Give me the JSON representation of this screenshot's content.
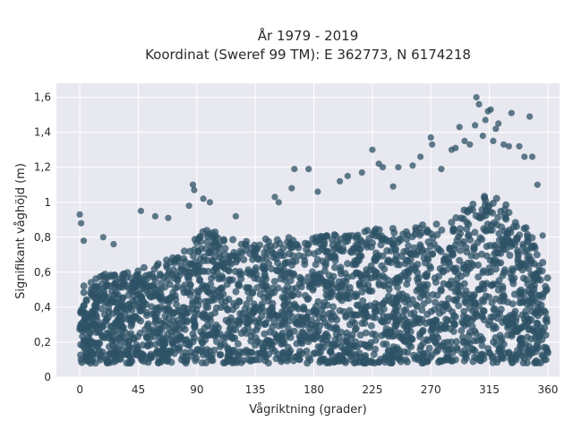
{
  "chart_data": {
    "type": "scatter",
    "title_line1": "År 1979 - 2019",
    "title_line2": "Koordinat (Sweref 99 TM): E 362773, N 6174218",
    "xlabel": "Vågriktning (grader)",
    "ylabel": "Signifikant våghöjd (m)",
    "xlim": [
      -18,
      369
    ],
    "ylim": [
      0,
      1.68
    ],
    "xticks": [
      {
        "value": 0,
        "label": "0"
      },
      {
        "value": 45,
        "label": "45"
      },
      {
        "value": 90,
        "label": "90"
      },
      {
        "value": 135,
        "label": "135"
      },
      {
        "value": 180,
        "label": "180"
      },
      {
        "value": 225,
        "label": "225"
      },
      {
        "value": 270,
        "label": "270"
      },
      {
        "value": 315,
        "label": "315"
      },
      {
        "value": 360,
        "label": "360"
      }
    ],
    "yticks": [
      {
        "value": 0,
        "label": "0"
      },
      {
        "value": 0.2,
        "label": "0,2"
      },
      {
        "value": 0.4,
        "label": "0,4"
      },
      {
        "value": 0.6,
        "label": "0,6"
      },
      {
        "value": 0.8,
        "label": "0,8"
      },
      {
        "value": 1.0,
        "label": "1"
      },
      {
        "value": 1.2,
        "label": "1,2"
      },
      {
        "value": 1.4,
        "label": "1,4"
      },
      {
        "value": 1.6,
        "label": "1,6"
      }
    ],
    "grid": true,
    "marker_color": "#2e5266",
    "plot_bg_color": "#e8e8f0",
    "envelope": {
      "description_x": [
        0,
        10,
        20,
        30,
        45,
        60,
        75,
        85,
        90,
        100,
        120,
        135,
        150,
        170,
        180,
        200,
        225,
        250,
        270,
        285,
        300,
        315,
        330,
        345,
        355,
        360
      ],
      "upper_dense": [
        0.55,
        0.55,
        0.6,
        0.6,
        0.62,
        0.65,
        0.7,
        0.75,
        0.82,
        0.85,
        0.8,
        0.78,
        0.8,
        0.8,
        0.8,
        0.82,
        0.85,
        0.85,
        0.88,
        0.88,
        1.0,
        1.05,
        0.98,
        0.85,
        0.7,
        0.6
      ],
      "lower": 0.08
    },
    "outliers": [
      {
        "x": 0,
        "y": 0.93
      },
      {
        "x": 1,
        "y": 0.88
      },
      {
        "x": 3,
        "y": 0.78
      },
      {
        "x": 18,
        "y": 0.8
      },
      {
        "x": 26,
        "y": 0.76
      },
      {
        "x": 47,
        "y": 0.95
      },
      {
        "x": 58,
        "y": 0.92
      },
      {
        "x": 68,
        "y": 0.91
      },
      {
        "x": 84,
        "y": 0.98
      },
      {
        "x": 87,
        "y": 1.1
      },
      {
        "x": 88,
        "y": 1.07
      },
      {
        "x": 95,
        "y": 1.02
      },
      {
        "x": 100,
        "y": 1.0
      },
      {
        "x": 120,
        "y": 0.92
      },
      {
        "x": 150,
        "y": 1.03
      },
      {
        "x": 153,
        "y": 1.0
      },
      {
        "x": 163,
        "y": 1.08
      },
      {
        "x": 165,
        "y": 1.19
      },
      {
        "x": 176,
        "y": 1.19
      },
      {
        "x": 183,
        "y": 1.06
      },
      {
        "x": 200,
        "y": 1.12
      },
      {
        "x": 206,
        "y": 1.15
      },
      {
        "x": 217,
        "y": 1.17
      },
      {
        "x": 225,
        "y": 1.3
      },
      {
        "x": 230,
        "y": 1.22
      },
      {
        "x": 233,
        "y": 1.2
      },
      {
        "x": 241,
        "y": 1.09
      },
      {
        "x": 245,
        "y": 1.2
      },
      {
        "x": 256,
        "y": 1.21
      },
      {
        "x": 262,
        "y": 1.26
      },
      {
        "x": 270,
        "y": 1.37
      },
      {
        "x": 271,
        "y": 1.33
      },
      {
        "x": 278,
        "y": 1.19
      },
      {
        "x": 286,
        "y": 1.3
      },
      {
        "x": 289,
        "y": 1.31
      },
      {
        "x": 292,
        "y": 1.43
      },
      {
        "x": 296,
        "y": 1.35
      },
      {
        "x": 300,
        "y": 1.33
      },
      {
        "x": 304,
        "y": 1.44
      },
      {
        "x": 305,
        "y": 1.6
      },
      {
        "x": 307,
        "y": 1.56
      },
      {
        "x": 310,
        "y": 1.38
      },
      {
        "x": 312,
        "y": 1.47
      },
      {
        "x": 314,
        "y": 1.52
      },
      {
        "x": 316,
        "y": 1.53
      },
      {
        "x": 318,
        "y": 1.35
      },
      {
        "x": 320,
        "y": 1.42
      },
      {
        "x": 322,
        "y": 1.45
      },
      {
        "x": 326,
        "y": 1.33
      },
      {
        "x": 330,
        "y": 1.32
      },
      {
        "x": 332,
        "y": 1.51
      },
      {
        "x": 338,
        "y": 1.32
      },
      {
        "x": 342,
        "y": 1.26
      },
      {
        "x": 346,
        "y": 1.49
      },
      {
        "x": 348,
        "y": 1.26
      },
      {
        "x": 352,
        "y": 1.1
      },
      {
        "x": 356,
        "y": 0.81
      }
    ]
  }
}
